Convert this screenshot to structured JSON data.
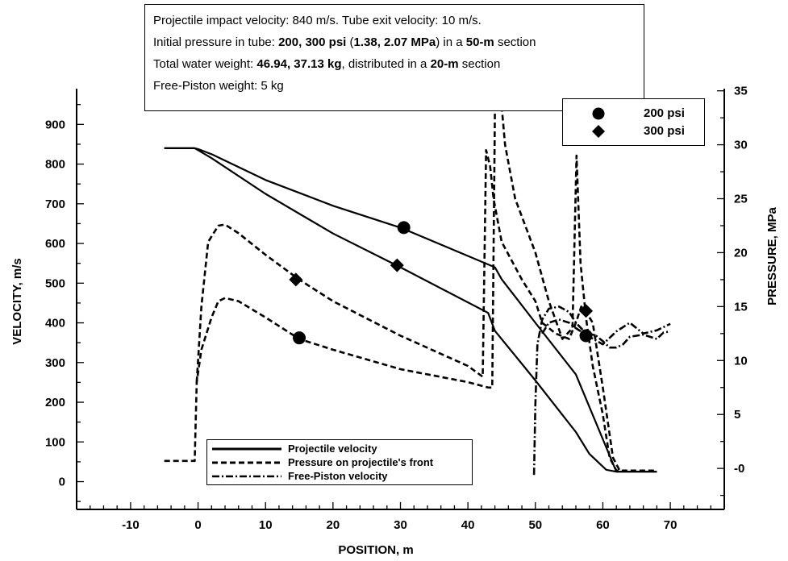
{
  "chart_data": {
    "type": "line",
    "info_lines": [
      [
        "Projectile impact velocity: 840 m/s.",
        "",
        "    Tube exit velocity: 10 m/s."
      ],
      [
        "Initial pressure in tube:  ",
        "200, 300 psi (1.38, 2.07 MPa)",
        " in a "
      ],
      [
        "Total water weight: ",
        "46.94, 37.13 kg",
        ", distributed in a "
      ],
      [
        "Free-Piston weight:  5 kg",
        "",
        ""
      ]
    ],
    "info_box": {
      "line1": "Projectile impact velocity: 840 m/s.    Tube exit velocity: 10 m/s.",
      "line2_a": "Initial pressure in tube:  ",
      "line2_b": "200, 300 psi",
      "line2_c": " (",
      "line2_d": "1.38, 2.07 MPa",
      "line2_e": ") in a ",
      "line2_f": "50-m",
      "line2_g": " section",
      "line3_a": "Total water weight: ",
      "line3_b": "46.94, 37.13 kg",
      "line3_c": ", distributed in a ",
      "line3_d": "20-m",
      "line3_e": " section",
      "line4": "Free-Piston weight:  5 kg"
    },
    "xlabel": "POSITION, m",
    "ylabel_left": "VELOCITY, m/s",
    "ylabel_right": "PRESSURE, MPa",
    "xlim": [
      -18,
      78
    ],
    "ylim_left": [
      -70,
      990
    ],
    "ylim_right": [
      -3.8,
      35.2
    ],
    "x_ticks": [
      -10,
      0,
      10,
      20,
      30,
      40,
      50,
      60,
      70
    ],
    "y_left_ticks": [
      0,
      100,
      200,
      300,
      400,
      500,
      600,
      700,
      800,
      900
    ],
    "y_right_ticks": [
      0,
      5,
      10,
      15,
      20,
      25,
      30,
      35
    ],
    "y_right_tick_labels": [
      "-0",
      "5",
      "10",
      "15",
      "20",
      "25",
      "30",
      "35"
    ],
    "marker_legend": [
      {
        "symbol": "circle",
        "label": "200 psi"
      },
      {
        "symbol": "diamond",
        "label": "300 psi"
      }
    ],
    "line_legend": [
      {
        "style": "solid",
        "label": "Projectile velocity"
      },
      {
        "style": "dashed",
        "label": "Pressure on projectile's front"
      },
      {
        "style": "dashdot",
        "label": "Free-Piston velocity"
      }
    ],
    "series": [
      {
        "style": "solid",
        "marker": "circle",
        "marker_x": 30.5,
        "axis": "left",
        "x": [
          -5,
          -0.5,
          0,
          2,
          10,
          20,
          30,
          44,
          45,
          50,
          56,
          62,
          64,
          68
        ],
        "y": [
          840,
          840,
          838,
          825,
          760,
          695,
          640,
          540,
          510,
          400,
          270,
          25,
          25,
          25
        ]
      },
      {
        "style": "solid",
        "marker": "diamond",
        "marker_x": 29.5,
        "axis": "left",
        "x": [
          -5,
          -0.5,
          0,
          2,
          10,
          20,
          30,
          43,
          44,
          50,
          56,
          58,
          60.5,
          62,
          68
        ],
        "y": [
          840,
          840,
          835,
          815,
          725,
          625,
          540,
          425,
          380,
          255,
          125,
          70,
          30,
          25,
          25
        ]
      },
      {
        "style": "dashed",
        "marker": "circle",
        "marker_x": 15,
        "axis": "right",
        "x": [
          -5,
          -0.5,
          -0.2,
          0.5,
          2,
          3,
          4,
          6,
          10,
          15,
          20,
          30,
          40,
          43,
          43.6,
          44,
          44.8,
          45.5,
          47,
          50,
          52,
          54,
          55.5,
          56.1,
          56.7,
          57.5,
          58.5,
          60,
          61,
          62,
          62.5,
          68
        ],
        "y": [
          0.7,
          0.7,
          8,
          11,
          14,
          15.5,
          15.8,
          15.5,
          14,
          12,
          11,
          9.2,
          8,
          7.5,
          7.5,
          33,
          35,
          30,
          25,
          20,
          15.5,
          12,
          13,
          29,
          19,
          14,
          9.5,
          5,
          1,
          -0.2,
          -0.2,
          -0.2
        ]
      },
      {
        "style": "dashed",
        "marker": "diamond",
        "marker_x": 14.5,
        "axis": "right",
        "x": [
          -0.2,
          0.5,
          1.5,
          3,
          4,
          6,
          10,
          15,
          20,
          30,
          40,
          42.2,
          42.7,
          43.3,
          43.8,
          45,
          48,
          50,
          51,
          53,
          55,
          56,
          56.8,
          57.5,
          58.5,
          60,
          61.5,
          62.5
        ],
        "y": [
          8,
          15,
          21,
          22.5,
          22.6,
          21.8,
          19.8,
          17.5,
          15.5,
          12.3,
          9.5,
          8.5,
          29.5,
          28,
          25,
          21,
          17.5,
          15.5,
          13.5,
          12.5,
          12,
          13.5,
          15,
          14.5,
          13.5,
          7.5,
          1,
          -0.2
        ]
      },
      {
        "style": "dashdot",
        "axis": "right",
        "x": [
          49.8,
          50,
          50.3,
          51,
          52,
          53.5,
          55,
          56,
          58,
          60,
          62,
          64,
          66,
          68,
          70
        ],
        "y": [
          -0.6,
          6,
          11.5,
          13.8,
          14.8,
          15,
          14.5,
          13.5,
          12.2,
          11.5,
          12.7,
          13.5,
          12.5,
          12.8,
          13.4
        ]
      },
      {
        "style": "dashdot",
        "axis": "right",
        "x": [
          51,
          52,
          53.5,
          55,
          56,
          57,
          58,
          59,
          60,
          61,
          62,
          63,
          64,
          66,
          68,
          69,
          70
        ],
        "y": [
          12.5,
          13.5,
          13.8,
          13.5,
          13,
          12.6,
          12.5,
          12.3,
          11.8,
          11.2,
          11.2,
          11.5,
          12.2,
          12.4,
          12.0,
          12.6,
          12.7
        ]
      }
    ],
    "markers": [
      {
        "symbol": "circle",
        "x": 30.5,
        "y": 640,
        "axis": "left"
      },
      {
        "symbol": "diamond",
        "x": 29.5,
        "y": 545,
        "axis": "left"
      },
      {
        "symbol": "circle",
        "x": 15,
        "y": 12.1,
        "axis": "right"
      },
      {
        "symbol": "diamond",
        "x": 14.5,
        "y": 17.5,
        "axis": "right"
      },
      {
        "symbol": "circle",
        "x": 57.5,
        "y": 12.3,
        "axis": "right"
      },
      {
        "symbol": "diamond",
        "x": 57.5,
        "y": 14.6,
        "axis": "right"
      }
    ]
  }
}
